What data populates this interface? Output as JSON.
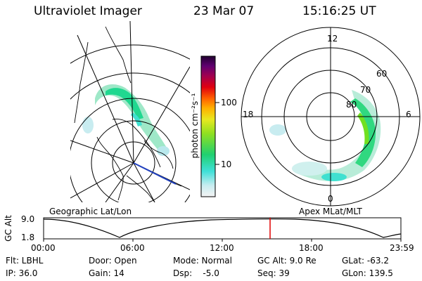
{
  "header": {
    "instrument": "Ultraviolet Imager",
    "date": "23 Mar 07",
    "time": "15:16:25 UT"
  },
  "geo_panel": {
    "label": "Geographic Lat/Lon"
  },
  "apex_panel": {
    "label": "Apex MLat/MLT",
    "mlt_labels": {
      "top": "12",
      "left": "18",
      "right": "6",
      "bottom": "0"
    },
    "lat_labels": [
      "60",
      "70",
      "80"
    ]
  },
  "colorbar": {
    "unit_label": "photon cm⁻²s⁻¹",
    "ticks": [
      "100",
      "10"
    ]
  },
  "altitude_plot": {
    "ylabel": "GC Alt",
    "y_top": "9.0",
    "y_bottom": "1.8",
    "x_ticks": [
      "00:00",
      "06:00",
      "12:00",
      "18:00",
      "23:59"
    ],
    "marker_color": "#e00000"
  },
  "info": {
    "filter": "Flt: LBHL",
    "ip": "IP: 36.0",
    "door": "Door: Open",
    "gain": "Gain: 14",
    "mode": "Mode: Normal",
    "dsp": "Dsp:    -5.0",
    "gc_alt": "GC Alt: 9.0 Re",
    "seq": "Seq: 39",
    "glat": "GLat: -63.2",
    "glon": "GLon: 139.5"
  }
}
